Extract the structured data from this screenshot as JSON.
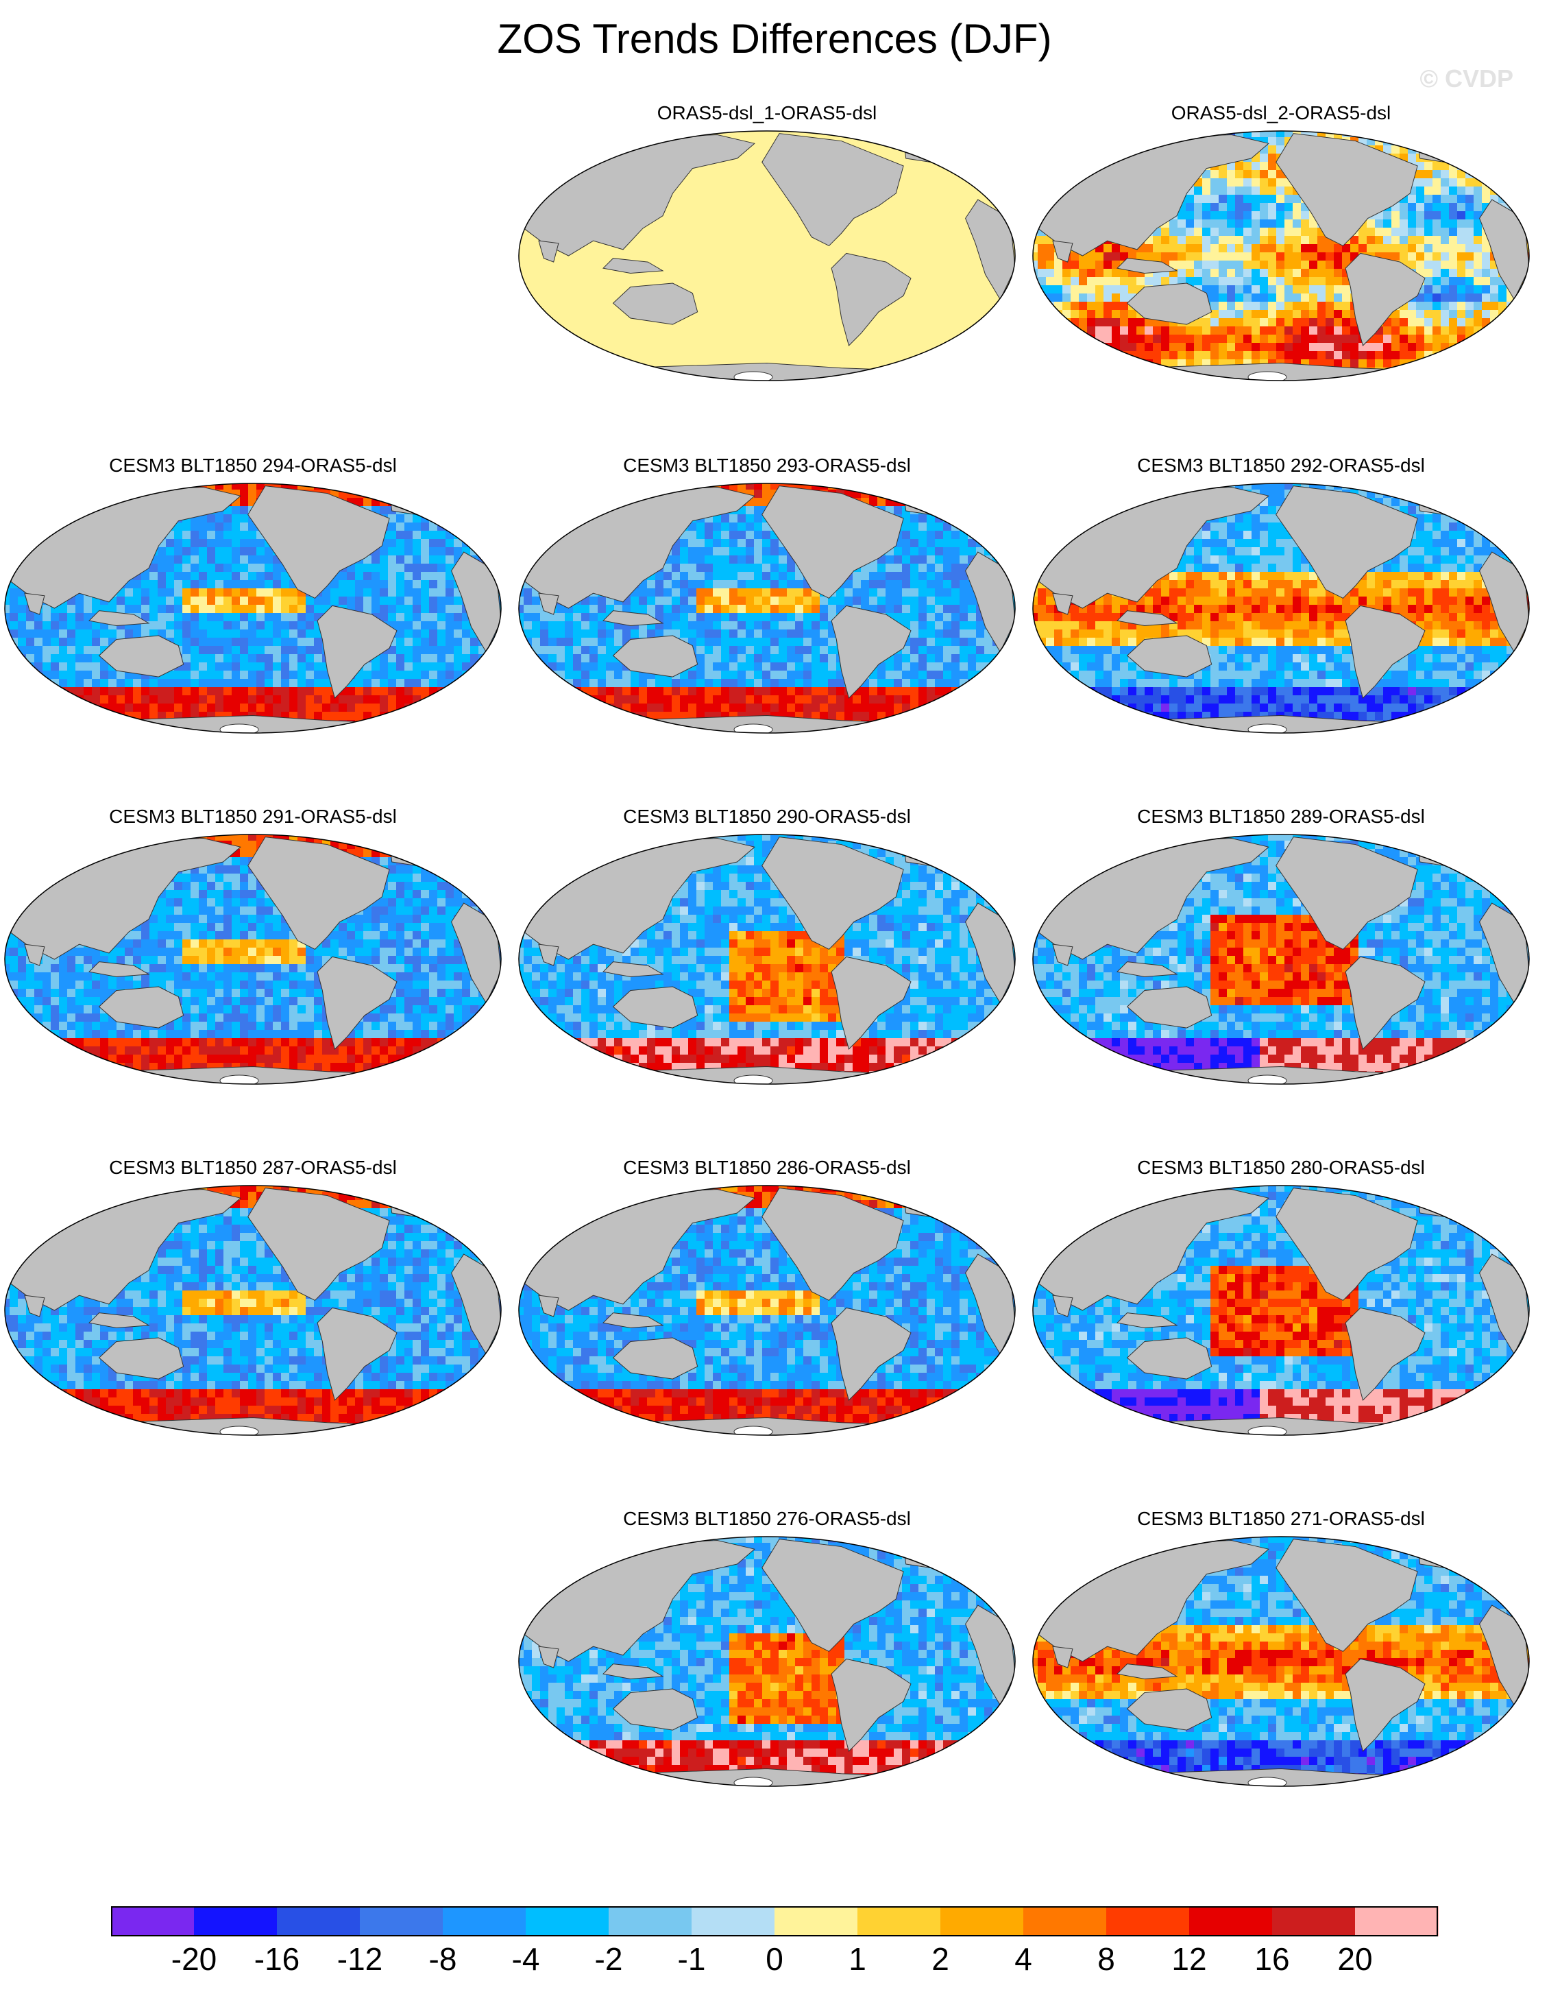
{
  "figure": {
    "title": "ZOS Trends Differences (DJF)",
    "watermark": "© CVDP"
  },
  "panels": [
    {
      "label": "ORAS5-dsl_1-ORAS5-dsl",
      "pattern": "uniform_zero"
    },
    {
      "label": "ORAS5-dsl_2-ORAS5-dsl",
      "pattern": "mixed_warm"
    },
    {
      "label": "CESM3 BLT1850 294-ORAS5-dsl",
      "pattern": "cool_pink_south"
    },
    {
      "label": "CESM3 BLT1850 293-ORAS5-dsl",
      "pattern": "cool_pink_south"
    },
    {
      "label": "CESM3 BLT1850 292-ORAS5-dsl",
      "pattern": "warm_tropics"
    },
    {
      "label": "CESM3 BLT1850 291-ORAS5-dsl",
      "pattern": "cool_pink_south"
    },
    {
      "label": "CESM3 BLT1850 290-ORAS5-dsl",
      "pattern": "warm_east_pacific"
    },
    {
      "label": "CESM3 BLT1850 289-ORAS5-dsl",
      "pattern": "warm_east_pacific_purple_south"
    },
    {
      "label": "CESM3 BLT1850 287-ORAS5-dsl",
      "pattern": "cool_pink_south"
    },
    {
      "label": "CESM3 BLT1850 286-ORAS5-dsl",
      "pattern": "cool_pink_south"
    },
    {
      "label": "CESM3 BLT1850 280-ORAS5-dsl",
      "pattern": "warm_east_pacific_purple_south"
    },
    {
      "label": "CESM3 BLT1850 276-ORAS5-dsl",
      "pattern": "warm_east_pacific"
    },
    {
      "label": "CESM3 BLT1850 271-ORAS5-dsl",
      "pattern": "warm_tropics"
    }
  ],
  "colorbar": {
    "colors": [
      "#7a28f0",
      "#1414ff",
      "#2850e6",
      "#3c78eb",
      "#1e96ff",
      "#00beff",
      "#78c8f0",
      "#b4def5",
      "#fff39a",
      "#ffd232",
      "#ffaa00",
      "#ff7800",
      "#ff3c00",
      "#e60000",
      "#cd1e1e",
      "#ffb4b4"
    ],
    "labels": [
      "-20",
      "-16",
      "-12",
      "-8",
      "-4",
      "-2",
      "-1",
      "0",
      "1",
      "2",
      "4",
      "8",
      "12",
      "16",
      "20"
    ]
  },
  "map_colors": {
    "land": "#c0c0c0",
    "coast": "#333333",
    "antarctic_ice": "#ffffff"
  }
}
